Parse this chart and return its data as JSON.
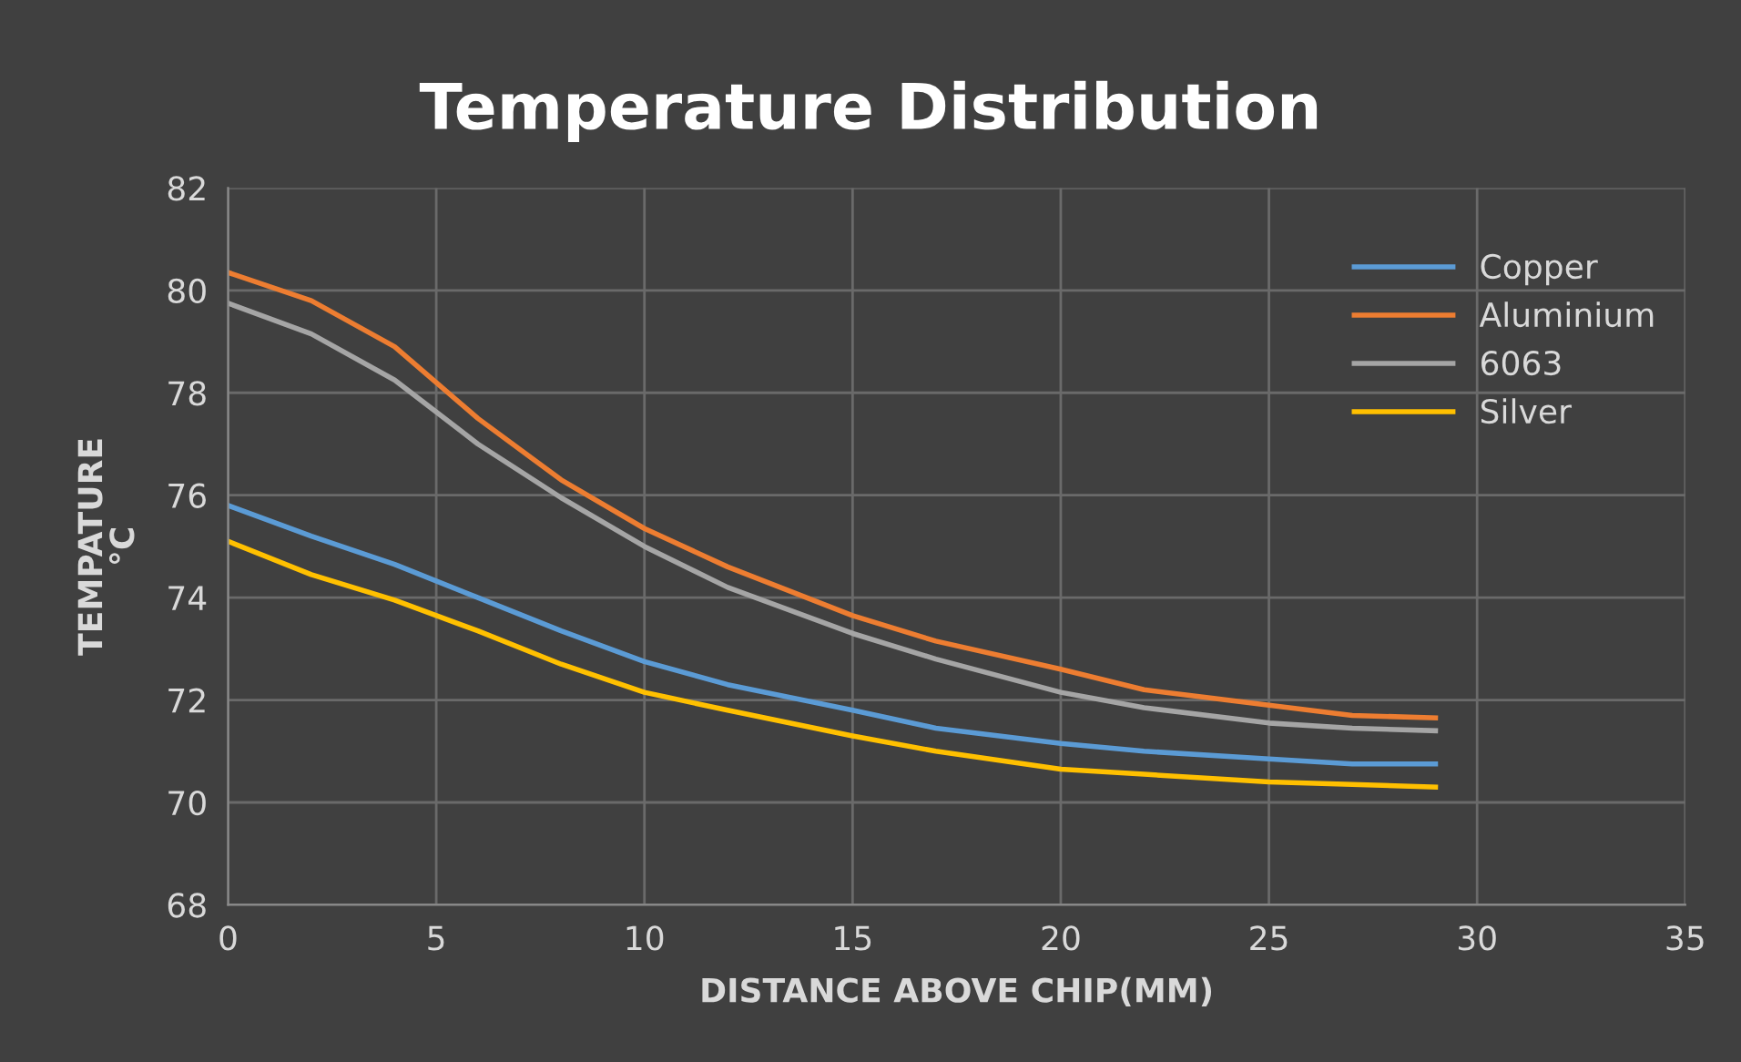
{
  "chart_data": {
    "type": "line",
    "title": "Temperature Distribution",
    "xlabel": "DISTANCE ABOVE CHIP(MM)",
    "ylabel": "TEMPATURE\n°C",
    "x": [
      0,
      2,
      4,
      6,
      8,
      10,
      12,
      15,
      17,
      20,
      22,
      25,
      27,
      29
    ],
    "series": [
      {
        "name": "Copper",
        "color": "#5b9bd5",
        "values": [
          75.8,
          75.2,
          74.65,
          74.0,
          73.35,
          72.75,
          72.3,
          71.8,
          71.45,
          71.15,
          71.0,
          70.85,
          70.75,
          70.75
        ]
      },
      {
        "name": "Aluminium",
        "color": "#ed7d31",
        "values": [
          80.35,
          79.8,
          78.9,
          77.5,
          76.3,
          75.35,
          74.6,
          73.65,
          73.15,
          72.6,
          72.2,
          71.9,
          71.7,
          71.65
        ]
      },
      {
        "name": "6063",
        "color": "#a5a5a5",
        "values": [
          79.75,
          79.15,
          78.25,
          77.0,
          75.95,
          75.0,
          74.2,
          73.3,
          72.8,
          72.15,
          71.85,
          71.55,
          71.45,
          71.4
        ]
      },
      {
        "name": "Silver",
        "color": "#ffc000",
        "values": [
          75.1,
          74.45,
          73.95,
          73.35,
          72.7,
          72.15,
          71.8,
          71.3,
          71.0,
          70.65,
          70.55,
          70.4,
          70.35,
          70.3
        ]
      }
    ],
    "xlim": [
      0,
      35
    ],
    "xticks": [
      0,
      5,
      10,
      15,
      20,
      25,
      30,
      35
    ],
    "ylim": [
      68,
      82
    ],
    "yticks": [
      68,
      70,
      72,
      74,
      76,
      78,
      80,
      82
    ],
    "grid": true,
    "legend": "top right",
    "marker": "none",
    "line_style": "solid"
  }
}
